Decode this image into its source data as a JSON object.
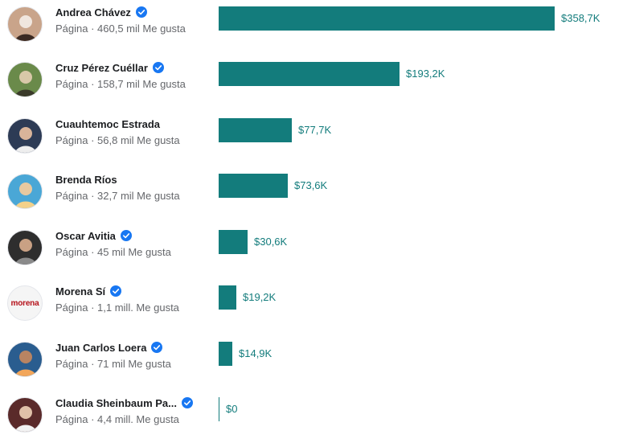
{
  "colors": {
    "bar": "#137c7c",
    "verified": "#1877f2",
    "secondary_text": "#65676b"
  },
  "chart_data": {
    "type": "bar",
    "orientation": "horizontal",
    "title": "",
    "xlabel": "",
    "ylabel": "",
    "xlim": [
      0,
      358.7
    ],
    "grid": false,
    "legend": "none",
    "categories": [
      "Andrea Chávez",
      "Cruz Pérez Cuéllar",
      "Cuauhtemoc Estrada",
      "Brenda Ríos",
      "Oscar Avitia",
      "Morena Sí",
      "Juan Carlos Loera",
      "Claudia Sheinbaum Pa..."
    ],
    "values": [
      358.7,
      193.2,
      77.7,
      73.6,
      30.6,
      19.2,
      14.9,
      0
    ],
    "value_labels": [
      "$358,7K",
      "$193,2K",
      "$77,7K",
      "$73,6K",
      "$30,6K",
      "$19,2K",
      "$14,9K",
      "$0"
    ]
  },
  "pages": [
    {
      "name": "Andrea Chávez",
      "verified": true,
      "meta": "Página · 460,5 mil Me gusta",
      "avatar": "person-photo"
    },
    {
      "name": "Cruz Pérez Cuéllar",
      "verified": true,
      "meta": "Página · 158,7 mil Me gusta",
      "avatar": "person-photo"
    },
    {
      "name": "Cuauhtemoc Estrada",
      "verified": false,
      "meta": "Página · 56,8 mil Me gusta",
      "avatar": "person-photo"
    },
    {
      "name": "Brenda Ríos",
      "verified": false,
      "meta": "Página · 32,7 mil Me gusta",
      "avatar": "person-photo"
    },
    {
      "name": "Oscar Avitia",
      "verified": true,
      "meta": "Página · 45 mil Me gusta",
      "avatar": "person-photo"
    },
    {
      "name": "Morena Sí",
      "verified": true,
      "meta": "Página · 1,1 mill. Me gusta",
      "avatar": "morena-logo",
      "logo_text": "morena"
    },
    {
      "name": "Juan Carlos Loera",
      "verified": true,
      "meta": "Página · 71 mil Me gusta",
      "avatar": "person-photo"
    },
    {
      "name": "Claudia Sheinbaum Pa...",
      "verified": true,
      "meta": "Página · 4,4 mill. Me gusta",
      "avatar": "person-photo"
    }
  ]
}
